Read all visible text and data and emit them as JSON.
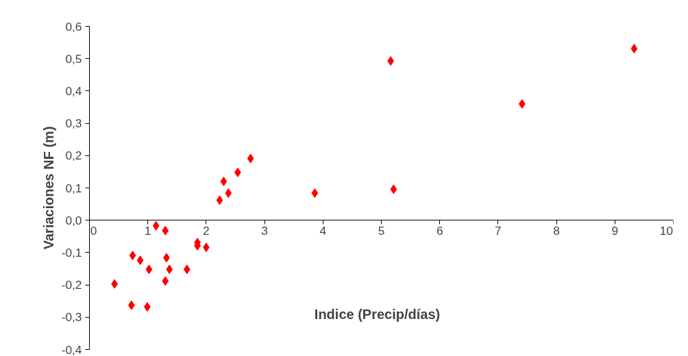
{
  "chart_data": {
    "type": "scatter",
    "xlabel": "Indice (Precip/días)",
    "ylabel": "Variaciones NF (m)",
    "marker": "diamond",
    "grid": false,
    "x": [
      0.43,
      0.72,
      0.74,
      0.87,
      0.99,
      1.02,
      1.14,
      1.3,
      1.32,
      1.3,
      1.37,
      1.67,
      1.85,
      1.85,
      2.0,
      2.23,
      2.3,
      2.38,
      2.54,
      2.76,
      3.86,
      5.16,
      5.21,
      7.41,
      9.33
    ],
    "series": [
      {
        "color": "#ff0000",
        "values": [
          -0.197,
          -0.263,
          -0.109,
          -0.124,
          -0.268,
          -0.152,
          -0.017,
          -0.032,
          -0.116,
          -0.188,
          -0.152,
          -0.152,
          -0.069,
          -0.079,
          -0.084,
          0.062,
          0.12,
          0.084,
          0.148,
          0.191,
          0.084,
          0.493,
          0.096,
          0.36,
          0.531
        ]
      }
    ],
    "xlim": [
      0,
      10
    ],
    "xticks": [
      0,
      1,
      2,
      3,
      4,
      5,
      6,
      7,
      8,
      9,
      10
    ],
    "ylim": [
      -0.4,
      0.6
    ],
    "yticks": [
      {
        "value": -0.4,
        "label": "-0,4"
      },
      {
        "value": -0.3,
        "label": "-0,3"
      },
      {
        "value": -0.2,
        "label": "-0,2"
      },
      {
        "value": -0.1,
        "label": "-0,1"
      },
      {
        "value": 0,
        "label": "0,0"
      },
      {
        "value": 0.1,
        "label": "0,1"
      },
      {
        "value": 0.2,
        "label": "0,2"
      },
      {
        "value": 0.3,
        "label": "0,3"
      },
      {
        "value": 0.4,
        "label": "0,4"
      },
      {
        "value": 0.5,
        "label": "0,5"
      },
      {
        "value": 0.6,
        "label": "0,6"
      }
    ]
  }
}
